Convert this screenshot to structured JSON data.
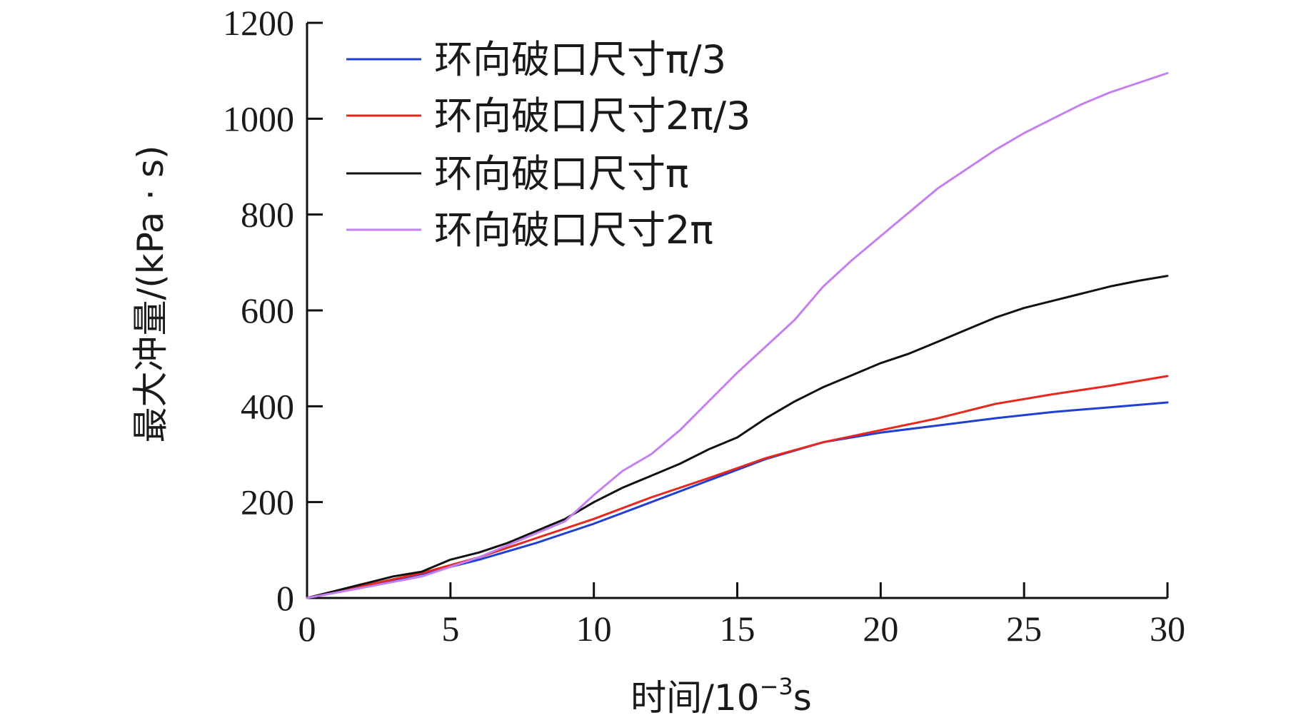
{
  "chart_data": {
    "type": "line",
    "xlabel": "时间/10",
    "xlabel_exp": "−3",
    "xlabel_unit": "s",
    "ylabel": "最大冲量/(kPa · s)",
    "xlim": [
      0,
      30
    ],
    "ylim": [
      0,
      1200
    ],
    "xticks": [
      0,
      5,
      10,
      15,
      20,
      25,
      30
    ],
    "yticks": [
      0,
      200,
      400,
      600,
      800,
      1000,
      1200
    ],
    "grid": false,
    "legend_position": "top-left",
    "series": [
      {
        "name": "环向破口尺寸π/3",
        "color": "#1f3fd6",
        "points": [
          [
            0,
            0
          ],
          [
            2,
            25
          ],
          [
            4,
            50
          ],
          [
            6,
            80
          ],
          [
            8,
            115
          ],
          [
            10,
            155
          ],
          [
            12,
            200
          ],
          [
            14,
            245
          ],
          [
            16,
            290
          ],
          [
            18,
            325
          ],
          [
            20,
            345
          ],
          [
            22,
            360
          ],
          [
            24,
            375
          ],
          [
            26,
            388
          ],
          [
            28,
            398
          ],
          [
            30,
            408
          ]
        ]
      },
      {
        "name": "环向破口尺寸2π/3",
        "color": "#e8281e",
        "points": [
          [
            0,
            0
          ],
          [
            2,
            26
          ],
          [
            4,
            52
          ],
          [
            6,
            85
          ],
          [
            8,
            125
          ],
          [
            10,
            165
          ],
          [
            12,
            210
          ],
          [
            14,
            250
          ],
          [
            16,
            292
          ],
          [
            18,
            325
          ],
          [
            20,
            350
          ],
          [
            22,
            375
          ],
          [
            24,
            405
          ],
          [
            26,
            425
          ],
          [
            28,
            443
          ],
          [
            30,
            463
          ]
        ]
      },
      {
        "name": "环向破口尺寸π",
        "color": "#111111",
        "points": [
          [
            0,
            0
          ],
          [
            1,
            15
          ],
          [
            2,
            30
          ],
          [
            3,
            45
          ],
          [
            4,
            55
          ],
          [
            5,
            80
          ],
          [
            6,
            95
          ],
          [
            7,
            115
          ],
          [
            8,
            140
          ],
          [
            9,
            165
          ],
          [
            10,
            200
          ],
          [
            11,
            230
          ],
          [
            12,
            255
          ],
          [
            13,
            280
          ],
          [
            14,
            310
          ],
          [
            15,
            335
          ],
          [
            16,
            375
          ],
          [
            17,
            410
          ],
          [
            18,
            440
          ],
          [
            19,
            465
          ],
          [
            20,
            490
          ],
          [
            21,
            510
          ],
          [
            22,
            535
          ],
          [
            23,
            560
          ],
          [
            24,
            585
          ],
          [
            25,
            605
          ],
          [
            26,
            620
          ],
          [
            27,
            635
          ],
          [
            28,
            650
          ],
          [
            29,
            662
          ],
          [
            30,
            672
          ]
        ]
      },
      {
        "name": "环向破口尺寸2π",
        "color": "#c47ff0",
        "points": [
          [
            0,
            0
          ],
          [
            2,
            22
          ],
          [
            4,
            45
          ],
          [
            6,
            85
          ],
          [
            8,
            135
          ],
          [
            9,
            160
          ],
          [
            10,
            215
          ],
          [
            11,
            265
          ],
          [
            12,
            300
          ],
          [
            13,
            350
          ],
          [
            14,
            410
          ],
          [
            15,
            470
          ],
          [
            16,
            525
          ],
          [
            17,
            580
          ],
          [
            18,
            650
          ],
          [
            19,
            705
          ],
          [
            20,
            755
          ],
          [
            21,
            805
          ],
          [
            22,
            855
          ],
          [
            23,
            895
          ],
          [
            24,
            935
          ],
          [
            25,
            970
          ],
          [
            26,
            1000
          ],
          [
            27,
            1030
          ],
          [
            28,
            1055
          ],
          [
            29,
            1075
          ],
          [
            30,
            1095
          ]
        ]
      }
    ]
  }
}
